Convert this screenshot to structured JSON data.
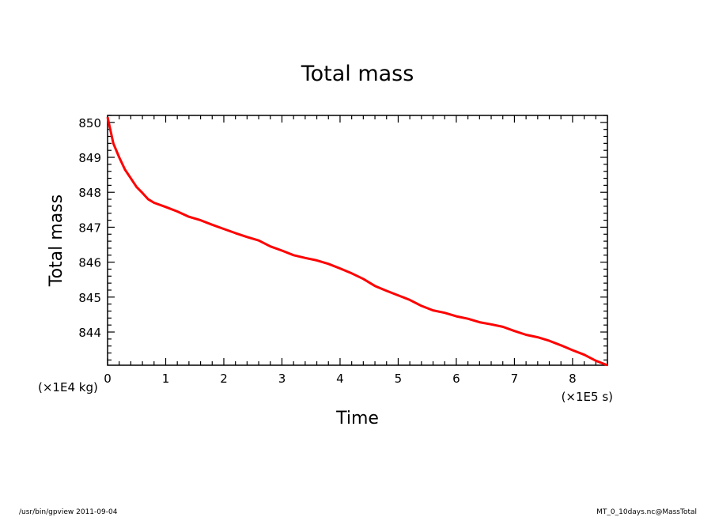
{
  "chart_data": {
    "type": "line",
    "title": "Total mass",
    "xlabel": "Time",
    "ylabel": "Total mass",
    "x_unit": "(×1E5 s)",
    "y_unit": "(×1E4 kg)",
    "xlim": [
      0,
      8.6
    ],
    "ylim": [
      843.05,
      850.2
    ],
    "x_ticks": [
      "0",
      "1",
      "2",
      "3",
      "4",
      "5",
      "6",
      "7",
      "8"
    ],
    "y_ticks": [
      "844",
      "845",
      "846",
      "847",
      "848",
      "849",
      "850"
    ],
    "grid": false,
    "series_color": "#ff0000",
    "series": [
      {
        "x": [
          0,
          0.1,
          0.2,
          0.3,
          0.4,
          0.5,
          0.6,
          0.7,
          0.8,
          1.0,
          1.2,
          1.4,
          1.6,
          1.8,
          2.0,
          2.2,
          2.4,
          2.6,
          2.8,
          3.0,
          3.2,
          3.4,
          3.6,
          3.8,
          4.0,
          4.2,
          4.4,
          4.6,
          4.8,
          5.0,
          5.2,
          5.4,
          5.6,
          5.8,
          6.0,
          6.2,
          6.4,
          6.6,
          6.8,
          7.0,
          7.2,
          7.4,
          7.6,
          7.8,
          8.0,
          8.2,
          8.4,
          8.6
        ],
        "values": [
          850.15,
          849.4,
          849.0,
          848.65,
          848.4,
          848.15,
          847.98,
          847.8,
          847.7,
          847.58,
          847.45,
          847.3,
          847.2,
          847.07,
          846.95,
          846.83,
          846.72,
          846.62,
          846.45,
          846.33,
          846.2,
          846.12,
          846.05,
          845.95,
          845.82,
          845.68,
          845.52,
          845.32,
          845.18,
          845.05,
          844.92,
          844.75,
          844.62,
          844.55,
          844.45,
          844.38,
          844.28,
          844.22,
          844.15,
          844.03,
          843.92,
          843.85,
          843.75,
          843.62,
          843.48,
          843.35,
          843.18,
          843.05
        ]
      }
    ]
  },
  "footer": {
    "left": "/usr/bin/gpview   2011-09-04",
    "right": "MT_0_10days.nc@MassTotal"
  }
}
